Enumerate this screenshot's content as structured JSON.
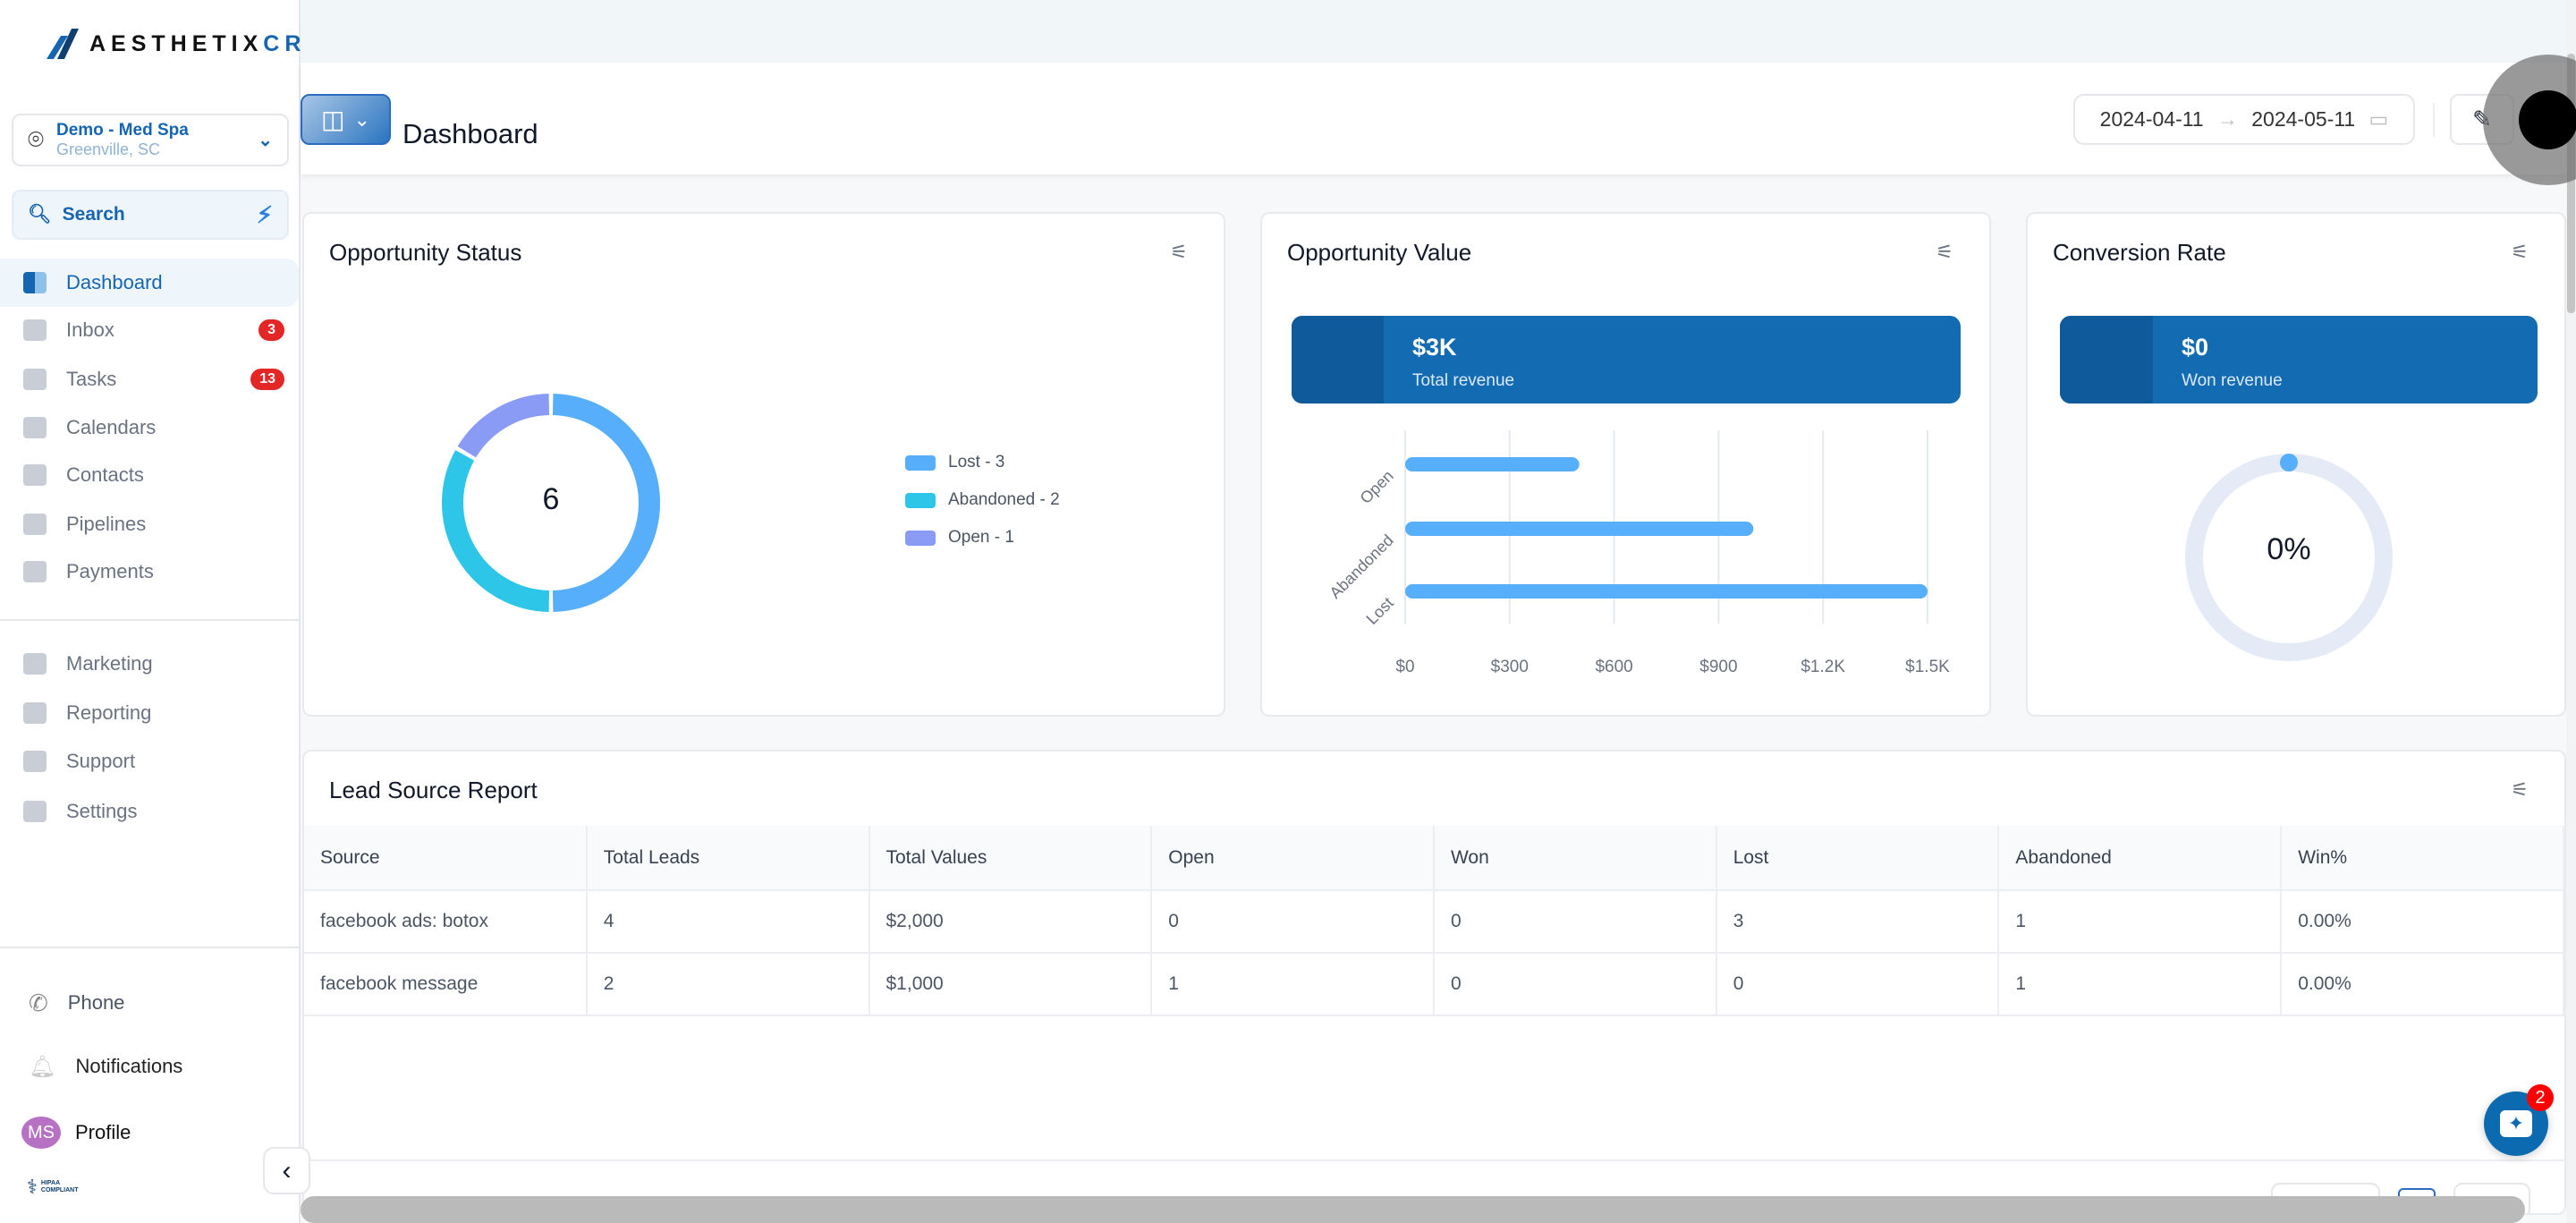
{
  "brand": {
    "name_part1": "AESTHETIX",
    "name_part2": "CRM"
  },
  "location": {
    "name": "Demo - Med Spa",
    "city": "Greenville, SC"
  },
  "search": {
    "label": "Search"
  },
  "nav": [
    {
      "label": "Dashboard",
      "icon": "dashboard-icon"
    },
    {
      "label": "Inbox",
      "icon": "inbox-icon",
      "badge": "3"
    },
    {
      "label": "Tasks",
      "icon": "tasks-icon",
      "badge": "13"
    },
    {
      "label": "Calendars",
      "icon": "calendar-icon"
    },
    {
      "label": "Contacts",
      "icon": "contacts-icon"
    },
    {
      "label": "Pipelines",
      "icon": "pipelines-icon"
    },
    {
      "label": "Payments",
      "icon": "payments-icon"
    }
  ],
  "nav2": [
    {
      "label": "Marketing",
      "icon": "megaphone-icon"
    },
    {
      "label": "Reporting",
      "icon": "pie-chart-icon"
    },
    {
      "label": "Support",
      "icon": "chat-icon"
    },
    {
      "label": "Settings",
      "icon": "gear-icon"
    }
  ],
  "bottom": {
    "phone": "Phone",
    "notifications": "Notifications",
    "profile": "Profile",
    "avatar_initials": "MS",
    "hipaa_logo_text": "HIPAA COMPLIANT"
  },
  "header": {
    "title": "Dashboard",
    "date_from": "2024-04-11",
    "date_to": "2024-05-11"
  },
  "colors": {
    "primary": "#136bb2",
    "lost": "#57aefa",
    "abandoned": "#2ec6e8",
    "open": "#8a9bf5"
  },
  "opportunity_status": {
    "title": "Opportunity Status",
    "total": "6",
    "legend": [
      "Lost - 3",
      "Abandoned - 2",
      "Open - 1"
    ]
  },
  "opportunity_value": {
    "title": "Opportunity Value",
    "value": "$3K",
    "label": "Total revenue"
  },
  "conversion": {
    "title": "Conversion Rate",
    "value": "$0",
    "label": "Won revenue",
    "rate": "0%",
    "rate_value": 0
  },
  "chart_data": [
    {
      "type": "pie",
      "title": "Opportunity Status",
      "categories": [
        "Lost",
        "Abandoned",
        "Open"
      ],
      "values": [
        3,
        2,
        1
      ],
      "center_label": "6"
    },
    {
      "type": "bar",
      "orientation": "horizontal",
      "title": "Opportunity Value",
      "categories": [
        "Open",
        "Abandoned",
        "Lost"
      ],
      "values": [
        500,
        1000,
        1500
      ],
      "xlim": [
        0,
        1500
      ],
      "xticks": [
        "$0",
        "$300",
        "$600",
        "$900",
        "$1.2K",
        "$1.5K"
      ],
      "grid": true
    }
  ],
  "lead_source": {
    "title": "Lead Source Report",
    "columns": [
      "Source",
      "Total Leads",
      "Total Values",
      "Open",
      "Won",
      "Lost",
      "Abandoned",
      "Win%"
    ],
    "rows": [
      [
        "facebook ads: botox",
        "4",
        "$2,000",
        "0",
        "0",
        "3",
        "1",
        "0.00%"
      ],
      [
        "facebook message",
        "2",
        "$1,000",
        "1",
        "0",
        "0",
        "1",
        "0.00%"
      ]
    ]
  },
  "chat": {
    "badge": "2"
  }
}
